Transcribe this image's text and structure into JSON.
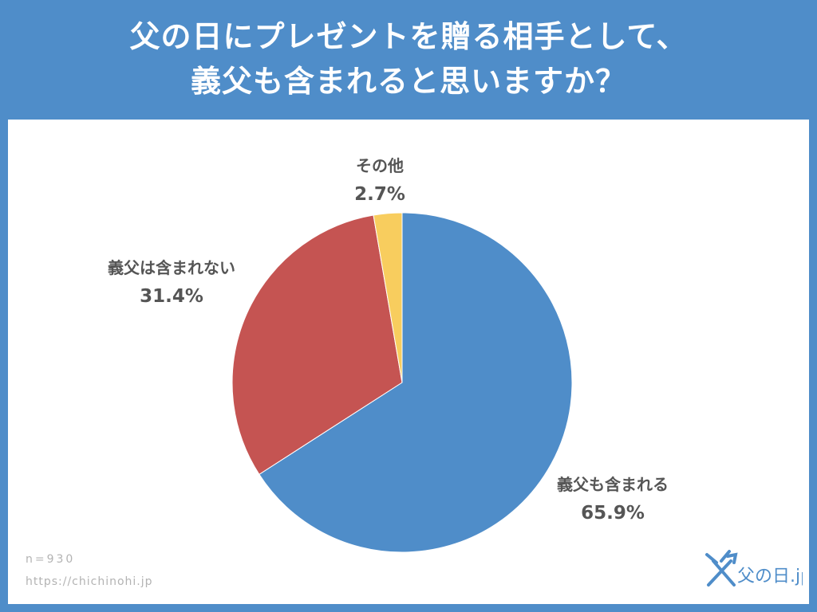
{
  "title": {
    "line1": "父の日にプレゼントを贈る相手として、",
    "line2": "義父も含まれると思いますか？"
  },
  "chart_data": {
    "type": "pie",
    "slices": [
      {
        "label": "義父も含まれる",
        "value": 65.9,
        "value_label": "65.9%",
        "color": "#4f8dc9"
      },
      {
        "label": "義父は含まれない",
        "value": 31.4,
        "value_label": "31.4%",
        "color": "#c55452"
      },
      {
        "label": "その他",
        "value": 2.7,
        "value_label": "2.7%",
        "color": "#f8cd5e"
      }
    ],
    "start": "12 o'clock",
    "direction": "clockwise"
  },
  "footer": {
    "n": "n=930",
    "url": "https://chichinohi.jp"
  },
  "logo": {
    "brand": "父の日.jp"
  }
}
